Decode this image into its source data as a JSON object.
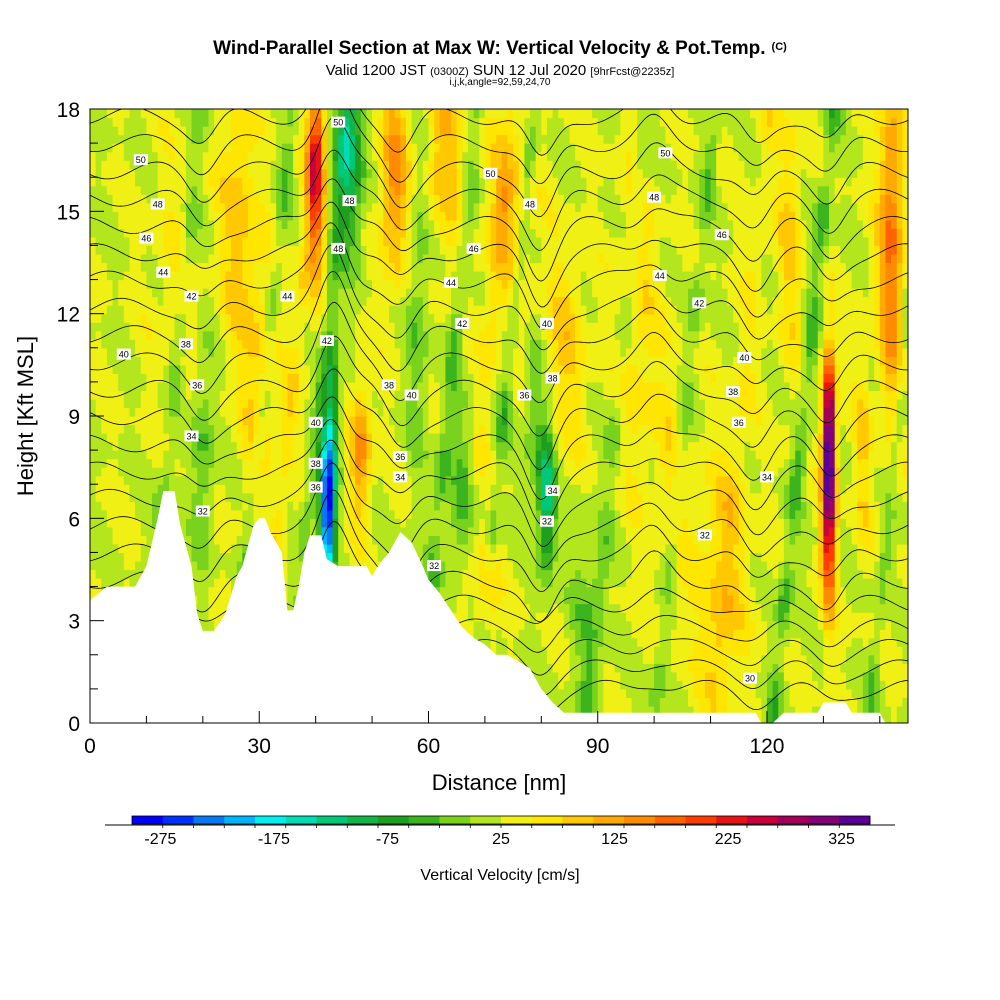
{
  "header": {
    "title": "Wind-Parallel Section at Max W: Vertical Velocity & Pot.Temp.",
    "title_unit": "(C)",
    "valid_prefix": "Valid 1200 JST",
    "valid_utc": "(0300Z)",
    "valid_date": "SUN 12 Jul 2020",
    "forecast": "[9hrFcst@2235z]",
    "indices": "i,j,k,angle=92,59,24,70"
  },
  "chart_data": {
    "type": "heatmap",
    "xlabel": "Distance [nm]",
    "ylabel": "Height [Kft MSL]",
    "xlim": [
      0,
      145
    ],
    "ylim": [
      0,
      18
    ],
    "x_ticks": [
      "0",
      "30",
      "60",
      "90",
      "120"
    ],
    "x_tick_values": [
      0,
      30,
      60,
      90,
      120
    ],
    "y_ticks": [
      "0",
      "3",
      "6",
      "9",
      "12",
      "15",
      "18"
    ],
    "y_tick_values": [
      0,
      3,
      6,
      9,
      12,
      15,
      18
    ],
    "colorbar": {
      "label": "Vertical Velocity [cm/s]",
      "tick_labels": [
        "-275",
        "-175",
        "-75",
        "25",
        "125",
        "225",
        "325"
      ],
      "tick_values": [
        -275,
        -175,
        -75,
        25,
        125,
        225,
        325
      ],
      "range": [
        -300,
        350
      ],
      "colors": [
        "#0000ff",
        "#0032ff",
        "#0a78f0",
        "#00b4ff",
        "#00f0f0",
        "#00dcb4",
        "#00c878",
        "#14b446",
        "#1ea01e",
        "#3cb41e",
        "#78d21e",
        "#b4e61e",
        "#f0f014",
        "#ffe600",
        "#ffc800",
        "#ffaa00",
        "#ff8c00",
        "#ff6400",
        "#ff3c00",
        "#e61414",
        "#c8003c",
        "#a0005a",
        "#820078",
        "#5a0096"
      ]
    },
    "terrain": [
      [
        0,
        3.6
      ],
      [
        3,
        4
      ],
      [
        8,
        4
      ],
      [
        10,
        4.6
      ],
      [
        12,
        6
      ],
      [
        13,
        6.8
      ],
      [
        15,
        6.8
      ],
      [
        16,
        5.8
      ],
      [
        18,
        4.6
      ],
      [
        19,
        3.2
      ],
      [
        20,
        2.7
      ],
      [
        22,
        2.7
      ],
      [
        24,
        3.2
      ],
      [
        26,
        4.3
      ],
      [
        27,
        4.6
      ],
      [
        29,
        5.8
      ],
      [
        30,
        6
      ],
      [
        31,
        6
      ],
      [
        32,
        5.6
      ],
      [
        33,
        5.3
      ],
      [
        34,
        5
      ],
      [
        35,
        3.3
      ],
      [
        36,
        3.3
      ],
      [
        37,
        4
      ],
      [
        38,
        5
      ],
      [
        39,
        5.5
      ],
      [
        41,
        5.5
      ],
      [
        42,
        4.8
      ],
      [
        44,
        4.6
      ],
      [
        48,
        4.6
      ],
      [
        49,
        4.6
      ],
      [
        50,
        4.3
      ],
      [
        51,
        4.6
      ],
      [
        53,
        5
      ],
      [
        55,
        5.6
      ],
      [
        57,
        5.3
      ],
      [
        59,
        4.6
      ],
      [
        60,
        4.2
      ],
      [
        62,
        3.8
      ],
      [
        64,
        3.3
      ],
      [
        66,
        2.8
      ],
      [
        68,
        2.5
      ],
      [
        70,
        2.3
      ],
      [
        72,
        2
      ],
      [
        74,
        2
      ],
      [
        76,
        1.8
      ],
      [
        78,
        1.6
      ],
      [
        79,
        1.3
      ],
      [
        80,
        1
      ],
      [
        82,
        0.6
      ],
      [
        84,
        0.3
      ],
      [
        114,
        0.3
      ],
      [
        118,
        0.3
      ],
      [
        119,
        0
      ],
      [
        121,
        0
      ],
      [
        123,
        0.3
      ],
      [
        129,
        0.3
      ],
      [
        130,
        0.6
      ],
      [
        134,
        0.6
      ],
      [
        135,
        0.3
      ],
      [
        140,
        0.3
      ],
      [
        141,
        0
      ],
      [
        145,
        0
      ]
    ],
    "theta_labels": [
      {
        "x": 9,
        "y": 16.5,
        "v": "50"
      },
      {
        "x": 12,
        "y": 15.2,
        "v": "48"
      },
      {
        "x": 10,
        "y": 14.2,
        "v": "46"
      },
      {
        "x": 13,
        "y": 13.2,
        "v": "44"
      },
      {
        "x": 18,
        "y": 12.5,
        "v": "42"
      },
      {
        "x": 17,
        "y": 11.1,
        "v": "38"
      },
      {
        "x": 6,
        "y": 10.8,
        "v": "40"
      },
      {
        "x": 19,
        "y": 9.9,
        "v": "36"
      },
      {
        "x": 18,
        "y": 8.4,
        "v": "34"
      },
      {
        "x": 20,
        "y": 6.2,
        "v": "32"
      },
      {
        "x": 35,
        "y": 12.5,
        "v": "44"
      },
      {
        "x": 44,
        "y": 17.6,
        "v": "50"
      },
      {
        "x": 46,
        "y": 15.3,
        "v": "48"
      },
      {
        "x": 44,
        "y": 13.9,
        "v": "48"
      },
      {
        "x": 42,
        "y": 11.2,
        "v": "42"
      },
      {
        "x": 40,
        "y": 8.8,
        "v": "40"
      },
      {
        "x": 40,
        "y": 7.6,
        "v": "38"
      },
      {
        "x": 40,
        "y": 6.9,
        "v": "36"
      },
      {
        "x": 53,
        "y": 9.9,
        "v": "38"
      },
      {
        "x": 57,
        "y": 9.6,
        "v": "40"
      },
      {
        "x": 55,
        "y": 7.8,
        "v": "36"
      },
      {
        "x": 55,
        "y": 7.2,
        "v": "34"
      },
      {
        "x": 61,
        "y": 4.6,
        "v": "32"
      },
      {
        "x": 64,
        "y": 12.9,
        "v": "44"
      },
      {
        "x": 66,
        "y": 11.7,
        "v": "42"
      },
      {
        "x": 68,
        "y": 13.9,
        "v": "46"
      },
      {
        "x": 71,
        "y": 16.1,
        "v": "50"
      },
      {
        "x": 78,
        "y": 15.2,
        "v": "48"
      },
      {
        "x": 81,
        "y": 11.7,
        "v": "40"
      },
      {
        "x": 82,
        "y": 10.1,
        "v": "38"
      },
      {
        "x": 77,
        "y": 9.6,
        "v": "36"
      },
      {
        "x": 82,
        "y": 6.8,
        "v": "34"
      },
      {
        "x": 81,
        "y": 5.9,
        "v": "32"
      },
      {
        "x": 102,
        "y": 16.7,
        "v": "50"
      },
      {
        "x": 100,
        "y": 15.4,
        "v": "48"
      },
      {
        "x": 112,
        "y": 14.3,
        "v": "46"
      },
      {
        "x": 101,
        "y": 13.1,
        "v": "44"
      },
      {
        "x": 108,
        "y": 12.3,
        "v": "42"
      },
      {
        "x": 116,
        "y": 10.7,
        "v": "40"
      },
      {
        "x": 114,
        "y": 9.7,
        "v": "38"
      },
      {
        "x": 115,
        "y": 8.8,
        "v": "36"
      },
      {
        "x": 120,
        "y": 7.2,
        "v": "34"
      },
      {
        "x": 109,
        "y": 5.5,
        "v": "32"
      },
      {
        "x": 117,
        "y": 1.3,
        "v": "30"
      }
    ]
  }
}
